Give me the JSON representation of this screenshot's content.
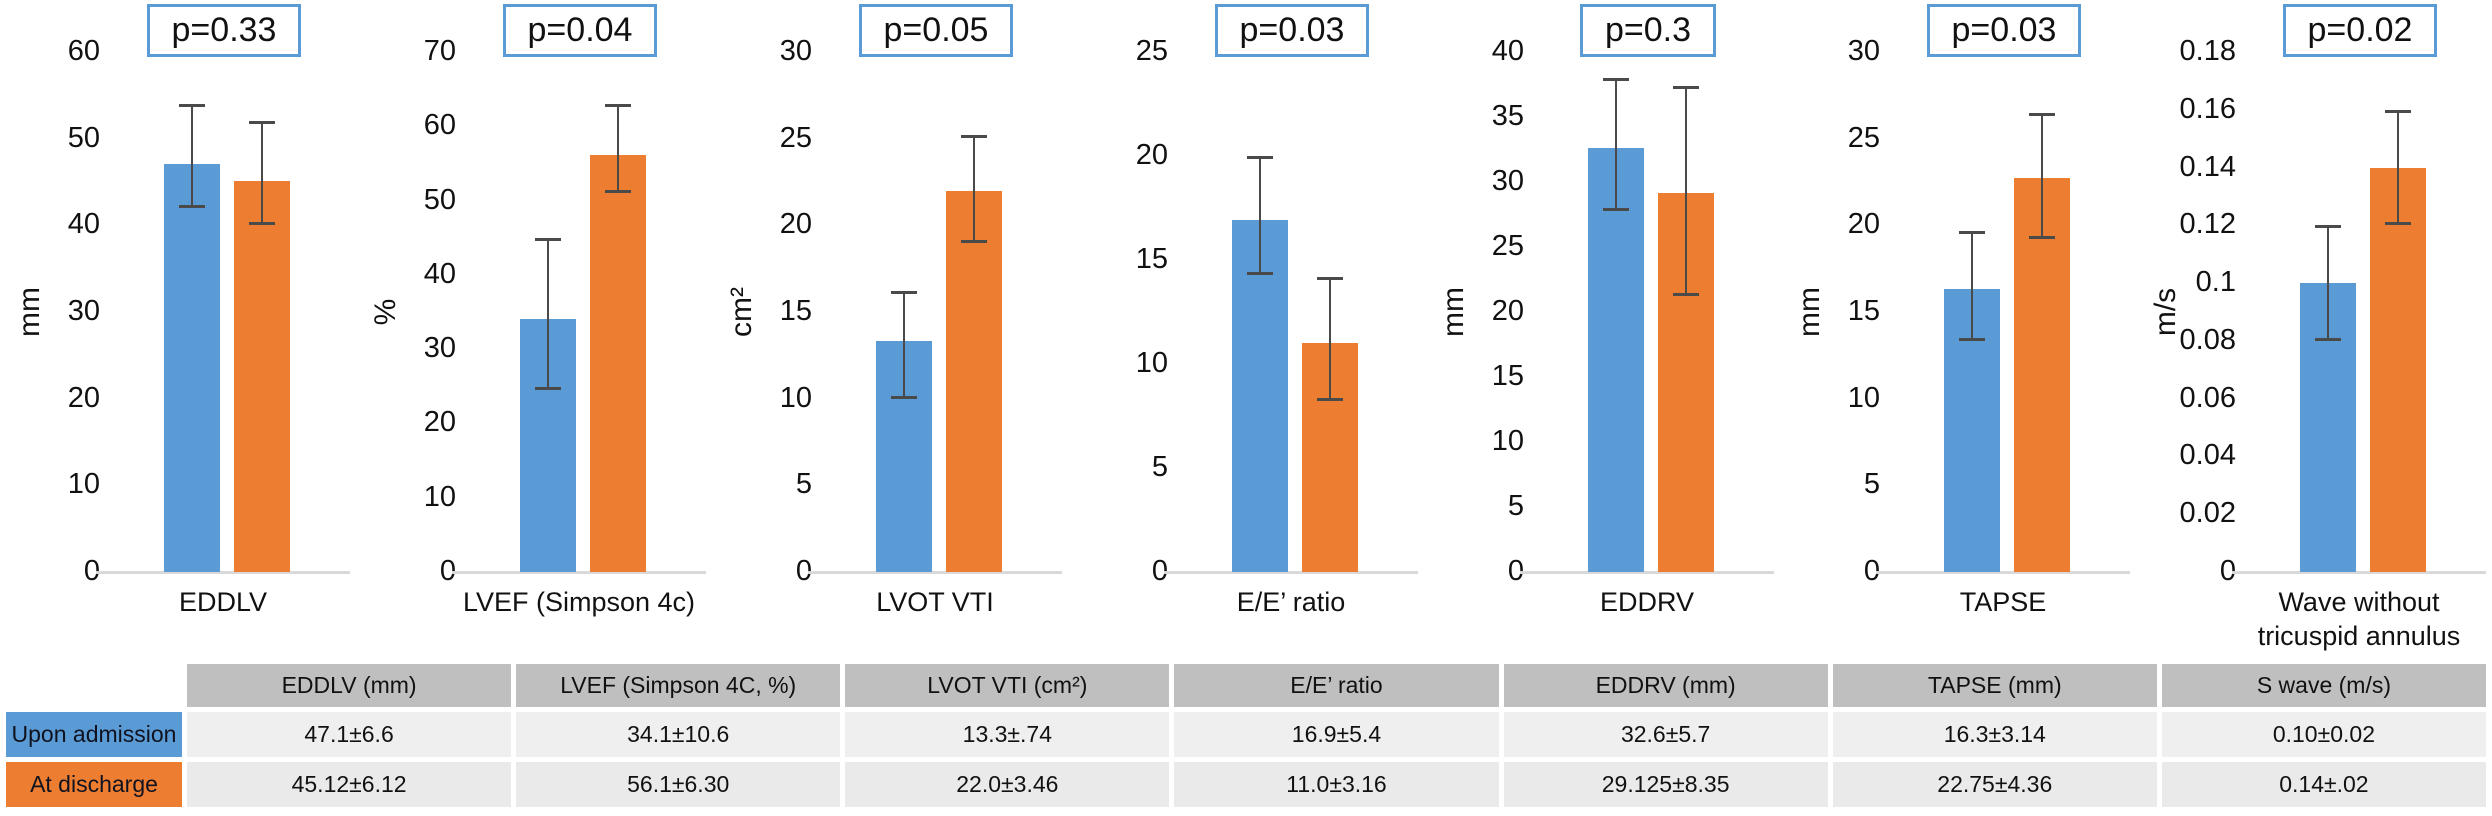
{
  "legend": [
    {
      "label": "Upon admission",
      "color": "#5B9BD5"
    },
    {
      "label": "At discharge",
      "color": "#ED7D31"
    }
  ],
  "colors": {
    "bar_admission": "#5B9BD5",
    "bar_discharge": "#ED7D31",
    "pbox_border": "#5B9BD5",
    "error_bar": "#4a4a4a",
    "baseline": "#D9D9D9",
    "table_header_bg": "#BFBFBF",
    "table_row1_bg": "#EFEFEF",
    "table_row2_bg": "#EAEAEA"
  },
  "chart_data": [
    {
      "type": "bar",
      "category": "EDDLV",
      "ylabel": "mm",
      "ylim": [
        0,
        60
      ],
      "yticks": [
        "0",
        "10",
        "20",
        "30",
        "40",
        "50",
        "60"
      ],
      "p_label": "p=0.33",
      "grid": false,
      "series": [
        {
          "name": "Upon admission",
          "value": 47.1,
          "err": [
            42,
            54
          ]
        },
        {
          "name": "At discharge",
          "value": 45.12,
          "err": [
            40,
            52
          ]
        }
      ]
    },
    {
      "type": "bar",
      "category": "LVEF (Simpson 4c)",
      "ylabel": "%",
      "ylim": [
        0,
        70
      ],
      "yticks": [
        "0",
        "10",
        "20",
        "30",
        "40",
        "50",
        "60",
        "70"
      ],
      "p_label": "p=0.04",
      "grid": false,
      "series": [
        {
          "name": "Upon admission",
          "value": 34.1,
          "err": [
            24.5,
            45
          ]
        },
        {
          "name": "At discharge",
          "value": 56.1,
          "err": [
            51,
            63
          ]
        }
      ]
    },
    {
      "type": "bar",
      "category": "LVOT VTI",
      "ylabel": "cm²",
      "ylim": [
        0,
        30
      ],
      "yticks": [
        "0",
        "5",
        "10",
        "15",
        "20",
        "25",
        "30"
      ],
      "p_label": "p=0.05",
      "grid": false,
      "series": [
        {
          "name": "Upon admission",
          "value": 13.3,
          "err": [
            10,
            16.2
          ]
        },
        {
          "name": "At discharge",
          "value": 22.0,
          "err": [
            19,
            25.2
          ]
        }
      ]
    },
    {
      "type": "bar",
      "category": "E/E’ ratio",
      "ylabel": "",
      "ylim": [
        0,
        25
      ],
      "yticks": [
        "0",
        "5",
        "10",
        "15",
        "20",
        "25"
      ],
      "p_label": "p=0.03",
      "grid": false,
      "series": [
        {
          "name": "Upon admission",
          "value": 16.9,
          "err": [
            14.3,
            20
          ]
        },
        {
          "name": "At discharge",
          "value": 11.0,
          "err": [
            8.2,
            14.2
          ]
        }
      ]
    },
    {
      "type": "bar",
      "category": "EDDRV",
      "ylabel": "mm",
      "ylim": [
        0,
        40
      ],
      "yticks": [
        "0",
        "5",
        "10",
        "15",
        "20",
        "25",
        "30",
        "35",
        "40"
      ],
      "p_label": "p=0.3",
      "grid": false,
      "series": [
        {
          "name": "Upon admission",
          "value": 32.6,
          "err": [
            27.8,
            38
          ]
        },
        {
          "name": "At discharge",
          "value": 29.125,
          "err": [
            21.2,
            37.4
          ]
        }
      ]
    },
    {
      "type": "bar",
      "category": "TAPSE",
      "ylabel": "mm",
      "ylim": [
        0,
        30
      ],
      "yticks": [
        "0",
        "5",
        "10",
        "15",
        "20",
        "25",
        "30"
      ],
      "p_label": "p=0.03",
      "grid": false,
      "series": [
        {
          "name": "Upon admission",
          "value": 16.3,
          "err": [
            13.3,
            19.7
          ]
        },
        {
          "name": "At discharge",
          "value": 22.75,
          "err": [
            19.2,
            26.5
          ]
        }
      ]
    },
    {
      "type": "bar",
      "category": "Wave without tricuspid annulus",
      "ylabel": "m/s",
      "ylim": [
        0,
        0.18
      ],
      "yticks": [
        "0",
        "0.02",
        "0.04",
        "0.06",
        "0.08",
        "0.1",
        "0.12",
        "0.14",
        "0.16",
        "0.18"
      ],
      "p_label": "p=0.02",
      "grid": false,
      "series": [
        {
          "name": "Upon admission",
          "value": 0.1,
          "err": [
            0.08,
            0.12
          ]
        },
        {
          "name": "At discharge",
          "value": 0.14,
          "err": [
            0.12,
            0.16
          ]
        }
      ]
    }
  ],
  "table": {
    "columns": [
      "EDDLV (mm)",
      "LVEF (Simpson 4C, %)",
      "LVOT VTI (cm²)",
      "E/E’ ratio",
      "EDDRV (mm)",
      "TAPSE (mm)",
      "S wave (m/s)"
    ],
    "rows": [
      {
        "label": "Upon admission",
        "color": "#5B9BD5",
        "values": [
          "47.1±6.6",
          "34.1±10.6",
          "13.3±.74",
          "16.9±5.4",
          "32.6±5.7",
          "16.3±3.14",
          "0.10±0.02"
        ]
      },
      {
        "label": "At discharge",
        "color": "#ED7D31",
        "values": [
          "45.12±6.12",
          "56.1±6.30",
          "22.0±3.46",
          "11.0±3.16",
          "29.125±8.35",
          "22.75±4.36",
          "0.14±.02"
        ]
      }
    ]
  }
}
